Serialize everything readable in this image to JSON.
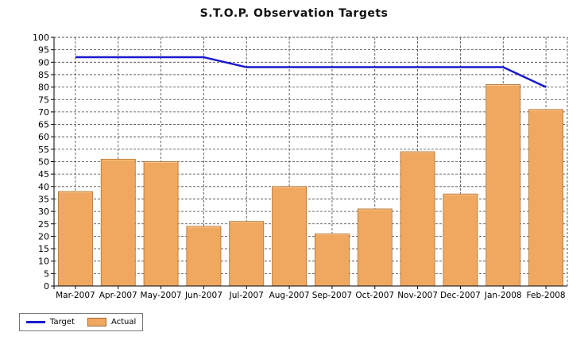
{
  "chart_data": {
    "type": "bar",
    "title": "S.T.O.P. Observation Targets",
    "xlabel": "",
    "ylabel": "",
    "categories": [
      "Mar-2007",
      "Apr-2007",
      "May-2007",
      "Jun-2007",
      "Jul-2007",
      "Aug-2007",
      "Sep-2007",
      "Oct-2007",
      "Nov-2007",
      "Dec-2007",
      "Jan-2008",
      "Feb-2008"
    ],
    "series": [
      {
        "name": "Actual",
        "type": "bar",
        "color": "#f0a860",
        "values": [
          38,
          51,
          50,
          24,
          26,
          40,
          21,
          31,
          54,
          37,
          81,
          71
        ]
      },
      {
        "name": "Target",
        "type": "line",
        "color": "#1a1acc",
        "values": [
          92,
          92,
          92,
          92,
          88,
          88,
          88,
          88,
          88,
          88,
          88,
          80
        ]
      }
    ],
    "ylim": [
      0,
      100
    ],
    "yticks": [
      0,
      5,
      10,
      15,
      20,
      25,
      30,
      35,
      40,
      45,
      50,
      55,
      60,
      65,
      70,
      75,
      80,
      85,
      90,
      95,
      100
    ],
    "grid": true,
    "legend_position": "bottom-left",
    "legend": [
      "Target",
      "Actual"
    ]
  }
}
